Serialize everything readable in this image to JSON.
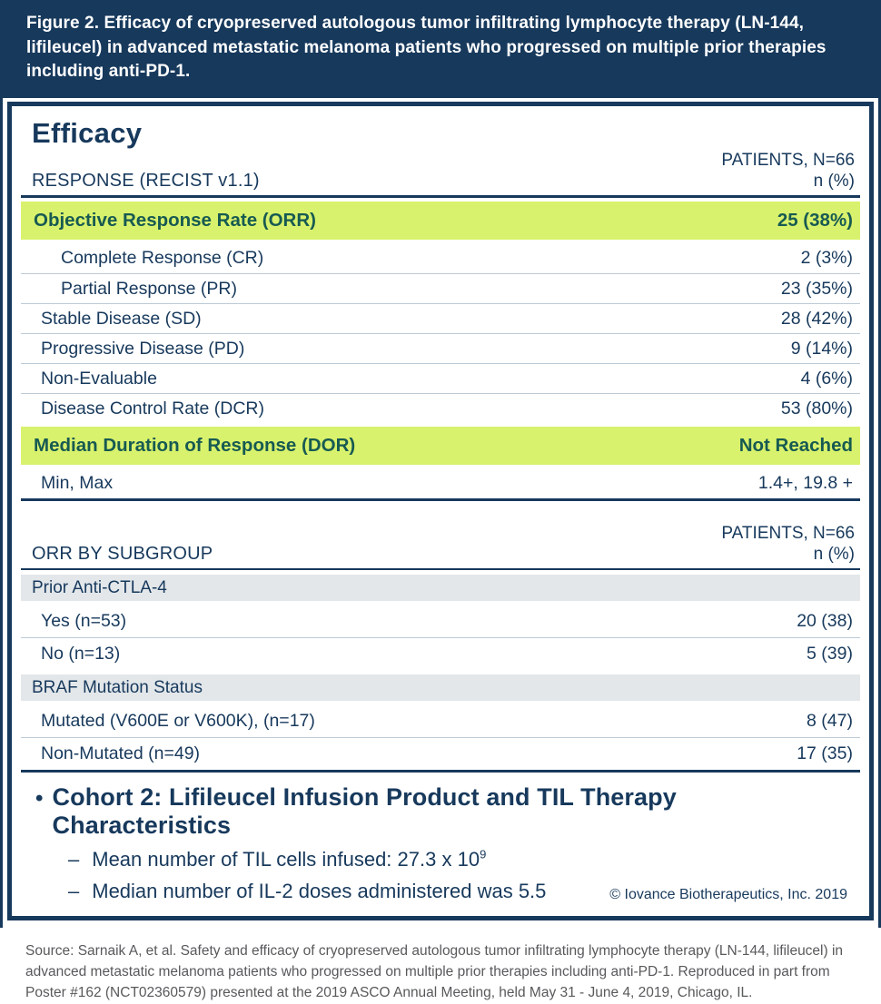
{
  "colors": {
    "navy": "#17395c",
    "highlight_green": "#d9f26d",
    "highlight_text": "#175a52",
    "band_gray": "#e3e7ea",
    "divider": "#bccbd6",
    "source_gray": "#58595b"
  },
  "figure_header": {
    "title": "Figure 2. Efficacy of cryopreserved autologous tumor infiltrating lymphocyte therapy (LN-144, lifileucel) in advanced metastatic melanoma patients who progressed on multiple prior therapies including anti-PD-1."
  },
  "panel": {
    "title": "Efficacy",
    "response_table": {
      "header_left": "RESPONSE (RECIST v1.1)",
      "header_right_line1": "PATIENTS, N=66",
      "header_right_line2": "n (%)",
      "rows": [
        {
          "label": "Objective Response Rate (ORR)",
          "value": "25 (38%)",
          "style": "highlight"
        },
        {
          "label": "Complete Response (CR)",
          "value": "2 (3%)",
          "style": "plain indent2"
        },
        {
          "label": "Partial Response (PR)",
          "value": "23 (35%)",
          "style": "plain indent2"
        },
        {
          "label": "Stable Disease (SD)",
          "value": "28 (42%)",
          "style": "plain"
        },
        {
          "label": "Progressive Disease (PD)",
          "value": "9 (14%)",
          "style": "plain"
        },
        {
          "label": "Non-Evaluable",
          "value": "4 (6%)",
          "style": "plain"
        },
        {
          "label": "Disease Control Rate (DCR)",
          "value": "53 (80%)",
          "style": "plain"
        },
        {
          "label": "Median Duration of Response (DOR)",
          "value": "Not Reached",
          "style": "highlight"
        },
        {
          "label": "Min, Max",
          "value": "1.4+, 19.8 +",
          "style": "plain"
        }
      ]
    },
    "subgroup_table": {
      "header_left": "ORR BY SUBGROUP",
      "header_right_line1": "PATIENTS, N=66",
      "header_right_line2": "n (%)",
      "rows": [
        {
          "label": "Prior Anti-CTLA-4",
          "value": "",
          "style": "band"
        },
        {
          "label": "Yes (n=53)",
          "value": "20 (38)",
          "style": "plain"
        },
        {
          "label": "No (n=13)",
          "value": "5 (39)",
          "style": "plain"
        },
        {
          "label": "BRAF Mutation Status",
          "value": "",
          "style": "band"
        },
        {
          "label": "Mutated (V600E or V600K), (n=17)",
          "value": "8 (47)",
          "style": "plain"
        },
        {
          "label": "Non-Mutated (n=49)",
          "value": "17 (35)",
          "style": "plain"
        }
      ]
    },
    "notes": {
      "bullet_glyph": "•",
      "dash_glyph": "–",
      "bullet": "Cohort 2: Lifileucel Infusion Product and TIL Therapy Characteristics",
      "sub1_prefix": "Mean number of TIL cells infused: 27.3 x 10",
      "sub1_sup": "9",
      "sub2": "Median number of IL-2 doses administered was 5.5",
      "copyright": "© Iovance Biotherapeutics, Inc. 2019"
    }
  },
  "source": "Source: Sarnaik A, et al. Safety and efficacy of cryopreserved autologous tumor infiltrating lymphocyte therapy (LN-144, lifileucel) in advanced metastatic melanoma patients who progressed on multiple prior therapies including anti-PD-1. Reproduced in part from Poster #162 (NCT02360579) presented at the 2019 ASCO Annual Meeting, held May 31 - June 4, 2019, Chicago, IL."
}
